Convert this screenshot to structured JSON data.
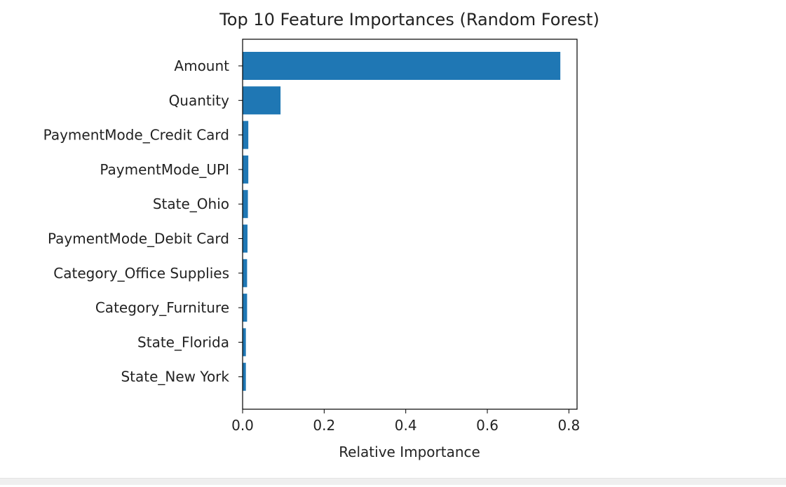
{
  "chart_data": {
    "type": "bar",
    "orientation": "horizontal",
    "title": "Top 10 Feature Importances (Random Forest)",
    "xlabel": "Relative Importance",
    "ylabel": "",
    "categories": [
      "Amount",
      "Quantity",
      "PaymentMode_Credit Card",
      "PaymentMode_UPI",
      "State_Ohio",
      "PaymentMode_Debit Card",
      "Category_Office Supplies",
      "Category_Furniture",
      "State_Florida",
      "State_New York"
    ],
    "values": [
      0.779,
      0.093,
      0.014,
      0.014,
      0.013,
      0.012,
      0.011,
      0.011,
      0.008,
      0.008
    ],
    "xlim": [
      0.0,
      0.82
    ],
    "xticks": [
      0.0,
      0.2,
      0.4,
      0.6,
      0.8
    ],
    "xtick_labels": [
      "0.0",
      "0.2",
      "0.4",
      "0.6",
      "0.8"
    ],
    "bar_color": "#1f77b4",
    "grid": false,
    "legend": "none"
  }
}
